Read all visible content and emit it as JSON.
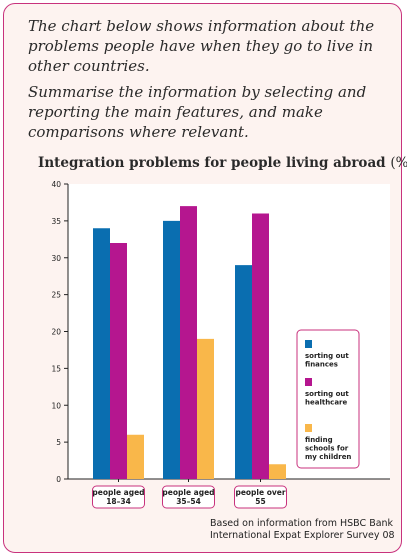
{
  "prompt": {
    "paragraph1": "The chart below shows information about the problems people have when they go to live in other countries.",
    "paragraph2": "Summarise the information by selecting and reporting the main features, and make comparisons where relevant."
  },
  "chart_data": {
    "type": "bar",
    "title": "Integration problems for people living abroad",
    "title_unit": "(%)",
    "categories": [
      "people aged 18–34",
      "people aged 35–54",
      "people over 55"
    ],
    "category_lines": [
      [
        "people aged",
        "18–34"
      ],
      [
        "people aged",
        "35–54"
      ],
      [
        "people over",
        "55"
      ]
    ],
    "series": [
      {
        "name": "sorting out finances",
        "name_lines": [
          "sorting out",
          "finances"
        ],
        "color": "#0a6eb0",
        "values": [
          34,
          35,
          29
        ]
      },
      {
        "name": "sorting out healthcare",
        "name_lines": [
          "sorting out",
          "healthcare"
        ],
        "color": "#b5168f",
        "values": [
          32,
          37,
          36
        ]
      },
      {
        "name": "finding schools for my children",
        "name_lines": [
          "finding",
          "schools for",
          "my children"
        ],
        "color": "#f9b74a",
        "values": [
          6,
          19,
          2
        ]
      }
    ],
    "ylim": [
      0,
      40
    ],
    "yticks": [
      0,
      5,
      10,
      15,
      20,
      25,
      30,
      35,
      40
    ],
    "grid": false,
    "legend_position": "right"
  },
  "source": {
    "line1": "Based on information from HSBC Bank",
    "line2": "International Expat Explorer Survey 08"
  },
  "colors": {
    "border": "#c8327d",
    "background": "#fdf3f0",
    "plot_background": "#ffffff"
  }
}
